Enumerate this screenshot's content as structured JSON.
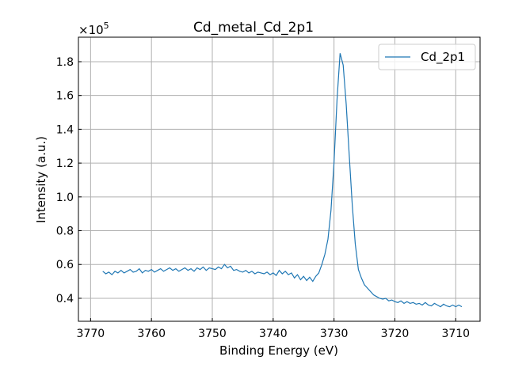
{
  "chart_data": {
    "type": "line",
    "title": "Cd_metal_Cd_2p1",
    "xlabel": "Binding Energy (eV)",
    "ylabel": "Intensity (a.u.)",
    "y_multiplier_label": "×10",
    "y_multiplier_exp": "5",
    "xlim": [
      3772,
      3706
    ],
    "ylim": [
      0.264,
      1.945
    ],
    "x_reversed": true,
    "grid": true,
    "legend_position": "top-right",
    "x_ticks": [
      3770,
      3760,
      3750,
      3740,
      3730,
      3720,
      3710
    ],
    "y_ticks": [
      0.4,
      0.6,
      0.8,
      1.0,
      1.2,
      1.4,
      1.6,
      1.8
    ],
    "series": [
      {
        "name": "Cd_2p1",
        "color": "#1f77b4",
        "x_start": 3768,
        "x_step": -0.5,
        "y": [
          0.56,
          0.545,
          0.555,
          0.54,
          0.56,
          0.55,
          0.565,
          0.55,
          0.56,
          0.57,
          0.555,
          0.56,
          0.575,
          0.55,
          0.565,
          0.56,
          0.57,
          0.555,
          0.565,
          0.575,
          0.56,
          0.57,
          0.58,
          0.565,
          0.575,
          0.56,
          0.57,
          0.58,
          0.565,
          0.575,
          0.56,
          0.58,
          0.57,
          0.585,
          0.565,
          0.58,
          0.575,
          0.57,
          0.585,
          0.575,
          0.6,
          0.58,
          0.59,
          0.565,
          0.57,
          0.56,
          0.555,
          0.565,
          0.55,
          0.56,
          0.545,
          0.555,
          0.55,
          0.545,
          0.555,
          0.54,
          0.55,
          0.535,
          0.565,
          0.545,
          0.56,
          0.54,
          0.55,
          0.52,
          0.54,
          0.51,
          0.53,
          0.505,
          0.525,
          0.5,
          0.53,
          0.55,
          0.6,
          0.66,
          0.75,
          0.92,
          1.2,
          1.58,
          1.85,
          1.78,
          1.55,
          1.25,
          0.95,
          0.72,
          0.57,
          0.52,
          0.48,
          0.46,
          0.44,
          0.42,
          0.41,
          0.4,
          0.395,
          0.4,
          0.385,
          0.39,
          0.38,
          0.375,
          0.385,
          0.37,
          0.38,
          0.37,
          0.375,
          0.365,
          0.37,
          0.36,
          0.375,
          0.36,
          0.355,
          0.37,
          0.36,
          0.35,
          0.365,
          0.355,
          0.35,
          0.36,
          0.35,
          0.36,
          0.35
        ]
      }
    ]
  }
}
